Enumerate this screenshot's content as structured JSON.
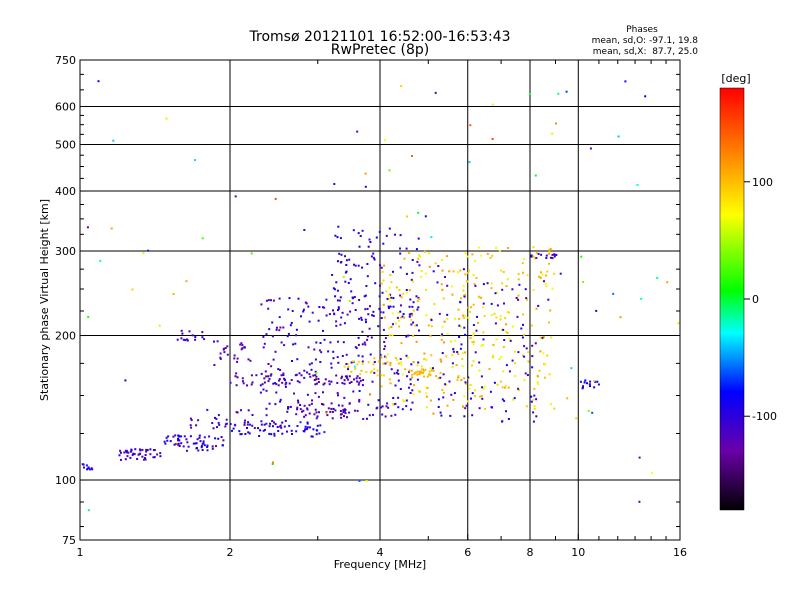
{
  "chart_data": {
    "type": "scatter",
    "title": "Tromsø 20121101 16:52:00-16:53:43",
    "subtitle": "RwPretec (8p)",
    "xlabel": "Frequency [MHz]",
    "ylabel": "Stationary phase Virtual Height [km]",
    "x_scale": "log",
    "y_scale": "log",
    "xlim": [
      1,
      16
    ],
    "ylim": [
      75,
      750
    ],
    "x_ticks": [
      {
        "value": 1,
        "label": "1"
      },
      {
        "value": 2,
        "label": "2"
      },
      {
        "value": 4,
        "label": "4"
      },
      {
        "value": 6,
        "label": "6"
      },
      {
        "value": 8,
        "label": "8"
      },
      {
        "value": 10,
        "label": "10"
      },
      {
        "value": 16,
        "label": "16"
      }
    ],
    "y_ticks": [
      {
        "value": 75,
        "label": "75"
      },
      {
        "value": 100,
        "label": "100"
      },
      {
        "value": 200,
        "label": "200"
      },
      {
        "value": 300,
        "label": "300"
      },
      {
        "value": 400,
        "label": "400"
      },
      {
        "value": 500,
        "label": "500"
      },
      {
        "value": 600,
        "label": "600"
      },
      {
        "value": 750,
        "label": "750"
      }
    ],
    "x_grid": [
      2,
      4,
      6,
      8,
      10
    ],
    "y_grid": [
      100,
      200,
      300,
      400,
      500,
      600
    ],
    "grid": true,
    "legend": {
      "heading": "Phases",
      "line1": "mean, sd,O: -97.1, 19.8",
      "line2": "mean, sd,X:  87.7, 25.0",
      "placement": "top-right"
    },
    "colorbar": {
      "label": "[deg]",
      "range": [
        -180,
        180
      ],
      "ticks": [
        {
          "value": 100,
          "label": "100"
        },
        {
          "value": 0,
          "label": "0"
        },
        {
          "value": -100,
          "label": "-100"
        }
      ],
      "colormap": [
        "#000000",
        "#6a00a8",
        "#0000ff",
        "#00ffff",
        "#00ff00",
        "#ffff00",
        "#ff8000",
        "#ff0000"
      ]
    },
    "clusters": [
      {
        "f_range": [
          1.0,
          1.08
        ],
        "h_range": [
          105,
          108
        ],
        "phase_range": [
          -115,
          -75
        ],
        "n": 12
      },
      {
        "f_range": [
          1.18,
          1.45
        ],
        "h_range": [
          110,
          116
        ],
        "phase_range": [
          -125,
          -90
        ],
        "n": 45
      },
      {
        "f_range": [
          1.45,
          1.95
        ],
        "h_range": [
          115,
          124
        ],
        "phase_range": [
          -125,
          -80
        ],
        "n": 60
      },
      {
        "f_range": [
          1.95,
          3.1
        ],
        "h_range": [
          123,
          132
        ],
        "phase_range": [
          -110,
          -70
        ],
        "n": 60
      },
      {
        "f_range": [
          1.65,
          2.6
        ],
        "h_range": [
          128,
          140
        ],
        "phase_range": [
          -130,
          -95
        ],
        "n": 40
      },
      {
        "f_range": [
          2.6,
          4.3
        ],
        "h_range": [
          134,
          145
        ],
        "phase_range": [
          -140,
          -100
        ],
        "n": 70
      },
      {
        "f_range": [
          2.0,
          3.7
        ],
        "h_range": [
          157,
          167
        ],
        "phase_range": [
          -145,
          -110
        ],
        "n": 70
      },
      {
        "f_range": [
          1.85,
          2.2
        ],
        "h_range": [
          172,
          195
        ],
        "phase_range": [
          -130,
          -100
        ],
        "n": 25
      },
      {
        "f_range": [
          1.55,
          1.8
        ],
        "h_range": [
          195,
          205
        ],
        "phase_range": [
          -125,
          -100
        ],
        "n": 15
      },
      {
        "f_range": [
          2.3,
          4.8
        ],
        "h_range": [
          140,
          240
        ],
        "phase_range": [
          -125,
          -90
        ],
        "n": 230
      },
      {
        "f_range": [
          3.2,
          4.8
        ],
        "h_range": [
          210,
          340
        ],
        "phase_range": [
          -120,
          -85
        ],
        "n": 110
      },
      {
        "f_range": [
          3.3,
          4.2
        ],
        "h_range": [
          165,
          180
        ],
        "phase_range": [
          80,
          110
        ],
        "n": 25
      },
      {
        "f_range": [
          4.0,
          6.5
        ],
        "h_range": [
          140,
          300
        ],
        "phase_range": [
          60,
          120
        ],
        "n": 180
      },
      {
        "f_range": [
          4.6,
          5.3
        ],
        "h_range": [
          164,
          170
        ],
        "phase_range": [
          95,
          110
        ],
        "n": 25
      },
      {
        "f_range": [
          5.8,
          9.0
        ],
        "h_range": [
          140,
          310
        ],
        "phase_range": [
          60,
          115
        ],
        "n": 140
      },
      {
        "f_range": [
          5.0,
          8.5
        ],
        "h_range": [
          130,
          280
        ],
        "phase_range": [
          -120,
          -85
        ],
        "n": 110
      },
      {
        "f_range": [
          8.0,
          9.2
        ],
        "h_range": [
          290,
          296
        ],
        "phase_range": [
          -120,
          -100
        ],
        "n": 14
      },
      {
        "f_range": [
          10.0,
          11.0
        ],
        "h_range": [
          155,
          162
        ],
        "phase_range": [
          -105,
          -80
        ],
        "n": 14
      },
      {
        "f_range": [
          1.0,
          16.0
        ],
        "h_range": [
          80,
          700
        ],
        "phase_range": [
          -130,
          150
        ],
        "n": 90
      }
    ]
  }
}
